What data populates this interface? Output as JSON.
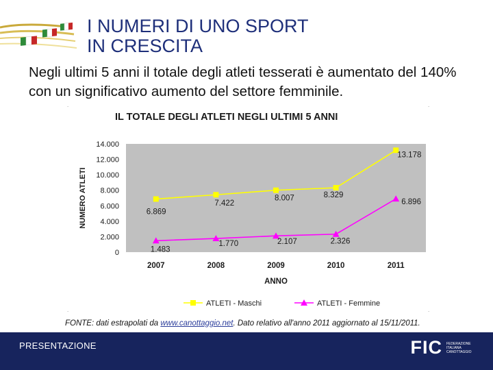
{
  "slide": {
    "title_line1": "I NUMERI DI UNO SPORT",
    "title_line2": "IN CRESCITA",
    "intro": "Negli ultimi 5 anni il totale degli atleti tesserati è aumentato del 140% con un significativo aumento del settore femminile.",
    "source_prefix": "FONTE: dati estrapolati da ",
    "source_link": "www.canottaggio.net",
    "source_suffix": ". Dato relativo all'anno 2011 aggiornato al 15/11/2011.",
    "footer_label": "PRESENTAZIONE",
    "logo_text": "FIC",
    "logo_subtext": "FEDERAZIONE ITALIANA CANOTTAGGIO"
  },
  "colors": {
    "title": "#1e2f7a",
    "footer_bg": "#17245d",
    "plot_bg": "#c0c0c0",
    "maschi": "#ffff00",
    "femmine": "#ff00ff"
  },
  "chart_data": {
    "type": "line",
    "title": "IL TOTALE DEGLI ATLETI NEGLI ULTIMI 5 ANNI",
    "xlabel": "ANNO",
    "ylabel": "NUMERO ATLETI",
    "categories": [
      "2007",
      "2008",
      "2009",
      "2010",
      "2011"
    ],
    "ylim": [
      0,
      14000
    ],
    "yticks": [
      "0",
      "2.000",
      "4.000",
      "6.000",
      "8.000",
      "10.000",
      "12.000",
      "14.000"
    ],
    "grid": false,
    "legend_position": "bottom",
    "series": [
      {
        "name": "ATLETI - Maschi",
        "values": [
          6869,
          7422,
          8007,
          8329,
          13178
        ],
        "labels": [
          "6.869",
          "7.422",
          "8.007",
          "8.329",
          "13.178"
        ],
        "color": "#ffff00",
        "marker": "square"
      },
      {
        "name": "ATLETI - Femmine",
        "values": [
          1483,
          1770,
          2107,
          2326,
          6896
        ],
        "labels": [
          "1.483",
          "1.770",
          "2.107",
          "2.326",
          "6.896"
        ],
        "color": "#ff00ff",
        "marker": "triangle"
      }
    ]
  }
}
